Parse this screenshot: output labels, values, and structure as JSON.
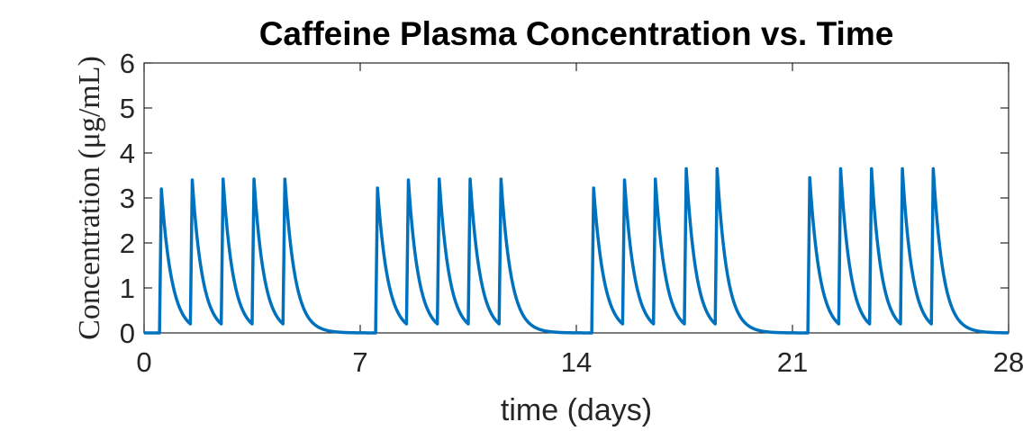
{
  "chart_data": {
    "type": "line",
    "title": "Caffeine Plasma Concentration vs. Time",
    "xlabel": "time (days)",
    "ylabel": "Concentration (μg/mL)",
    "xlim": [
      0,
      28
    ],
    "ylim": [
      0,
      6
    ],
    "xticks": [
      0,
      7,
      14,
      21,
      28
    ],
    "yticks": [
      0,
      1,
      2,
      3,
      4,
      5,
      6
    ],
    "grid": false,
    "legend": "none",
    "colors": {
      "series": "#0072BD",
      "axes": "#262626"
    },
    "dose_times_days": [
      0.5,
      1.5,
      2.5,
      3.5,
      4.5,
      7.5,
      8.5,
      9.5,
      10.5,
      11.5,
      14.5,
      15.5,
      16.5,
      17.5,
      18.5,
      21.5,
      22.5,
      23.5,
      24.5,
      25.5
    ],
    "peak_concentrations": [
      3.2,
      3.4,
      3.42,
      3.42,
      3.42,
      3.22,
      3.4,
      3.42,
      3.42,
      3.42,
      3.22,
      3.4,
      3.42,
      3.65,
      3.65,
      3.45,
      3.65,
      3.65,
      3.65,
      3.65
    ],
    "trough_concentrations": [
      0.2,
      0.2,
      0.2,
      0.2,
      0.2,
      0.2,
      0.2,
      0.2,
      0.2,
      0.2,
      0.2,
      0.2,
      0.2,
      0.2,
      0.2,
      0.2,
      0.2,
      0.2,
      0.2,
      0.2
    ],
    "series": [
      {
        "values_note_free": true,
        "x_start": 0,
        "x_end": 28
      }
    ]
  }
}
